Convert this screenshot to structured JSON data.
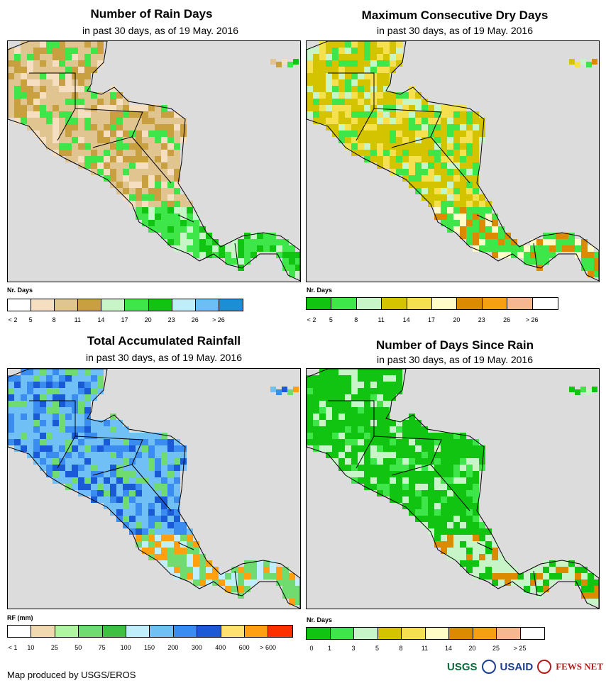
{
  "panels": [
    {
      "title": "Number of Rain Days",
      "subtitle": "in past 30 days, as of 19 May. 2016",
      "legend_title": "Nr. Days",
      "legend_colors": [
        "#ffffff",
        "#f5dfc0",
        "#e0c590",
        "#c9a040",
        "#c8f5c8",
        "#3ee64a",
        "#12c412",
        "#bfeefa",
        "#6cbff5",
        "#1a8fd6"
      ],
      "legend_labels": [
        "< 2",
        "5",
        "8",
        "11",
        "14",
        "17",
        "20",
        "23",
        "26",
        "> 26"
      ],
      "palette": [
        "#e0c590",
        "#c9a040",
        "#f5dfc0",
        "#3ee64a",
        "#12c412",
        "#c8f5c8"
      ]
    },
    {
      "title": "Maximum Consecutive Dry Days",
      "subtitle": "in past 30 days, as of 19 May. 2016",
      "legend_title": "Nr. Days",
      "legend_colors": [
        "#12c412",
        "#3ee64a",
        "#c8f5c8",
        "#d4c400",
        "#f5e050",
        "#fffcc8",
        "#dc8a00",
        "#f5a010",
        "#f5b890",
        "#ffffff"
      ],
      "legend_labels": [
        "< 2",
        "5",
        "8",
        "11",
        "14",
        "17",
        "20",
        "23",
        "26",
        "> 26"
      ],
      "palette": [
        "#d4c400",
        "#f5e050",
        "#c8f5c8",
        "#3ee64a",
        "#dc8a00",
        "#fffcc8"
      ]
    },
    {
      "title": "Total Accumulated Rainfall",
      "subtitle": "in past 30 days, as of 19 May. 2016",
      "legend_title": "RF (mm)",
      "legend_colors": [
        "#ffffff",
        "#f0d8b0",
        "#b0f5a0",
        "#70dc70",
        "#40c040",
        "#c0eefa",
        "#70bff5",
        "#3a8cf0",
        "#1a5ad6",
        "#ffe070",
        "#ffa010",
        "#ff3000"
      ],
      "legend_labels": [
        "< 1",
        "10",
        "25",
        "50",
        "75",
        "100",
        "150",
        "200",
        "300",
        "400",
        "600",
        "> 600"
      ],
      "palette": [
        "#70bff5",
        "#3a8cf0",
        "#1a5ad6",
        "#70dc70",
        "#ffa010",
        "#c0eefa"
      ]
    },
    {
      "title": "Number of Days Since Rain",
      "subtitle": "in past 30 days, as of 19 May. 2016",
      "legend_title": "Nr. Days",
      "legend_colors": [
        "#12c412",
        "#3ee64a",
        "#c8f5c8",
        "#d4c400",
        "#f5e050",
        "#fffcc8",
        "#dc8a00",
        "#f5a010",
        "#f5b890",
        "#ffffff"
      ],
      "legend_labels": [
        "0",
        "1",
        "3",
        "5",
        "8",
        "11",
        "14",
        "20",
        "25",
        "> 25"
      ],
      "palette": [
        "#12c412",
        "#12c412",
        "#3ee64a",
        "#c8f5c8",
        "#12c412",
        "#dc8a00"
      ]
    }
  ],
  "footer": {
    "credit": "Map produced by USGS/EROS",
    "logos": [
      "USGS",
      "USAID",
      "FEWS NET"
    ]
  }
}
